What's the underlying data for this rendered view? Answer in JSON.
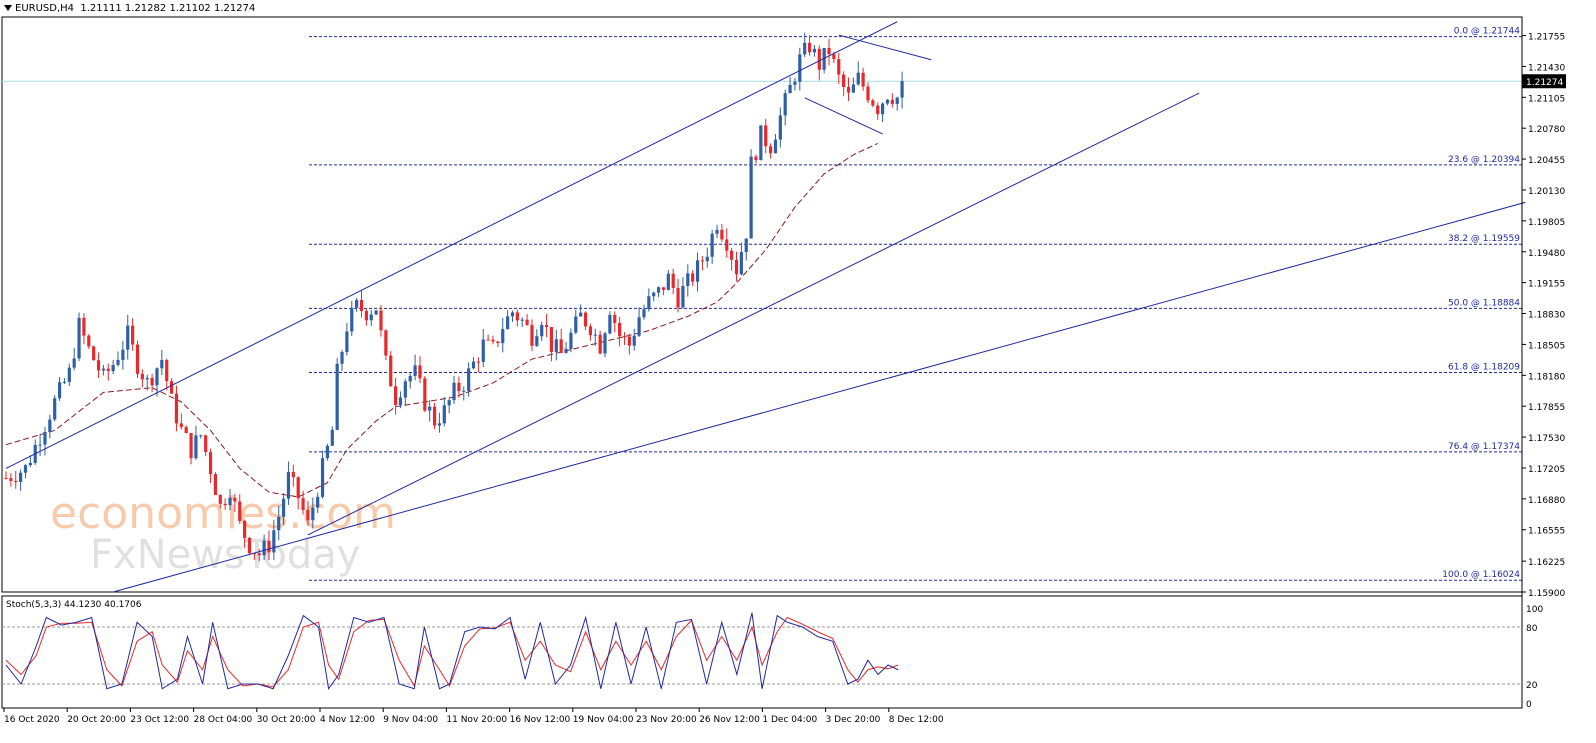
{
  "header": {
    "symbol": "EURUSD,H4",
    "ohlc": "1.21111 1.21282 1.21102 1.21274"
  },
  "colors": {
    "bull": "#2e5fa8",
    "bear": "#e8292b",
    "ma": "#8b1a1a",
    "trend": "#1f2a9e",
    "fib": "#1f2a9e",
    "stoch_main": "#1f2a9e",
    "stoch_signal": "#e8292b",
    "current_price_line": "#a9dbe6",
    "watermark_orange": "#f3a876",
    "watermark_grey": "#c8c8c8"
  },
  "watermark": {
    "line1": "economies.com",
    "line2": "FxNewsToday"
  },
  "chart_data": {
    "type": "candlestick",
    "symbol": "EURUSD",
    "timeframe": "H4",
    "current_price": "1.21274",
    "ylim": [
      1.159,
      1.2195
    ],
    "y_ticks": [
      "1.21755",
      "1.21430",
      "1.21105",
      "1.20780",
      "1.20455",
      "1.20130",
      "1.19805",
      "1.19480",
      "1.19155",
      "1.18830",
      "1.18505",
      "1.18180",
      "1.17855",
      "1.17530",
      "1.17205",
      "1.16880",
      "1.16555",
      "1.16225",
      "1.15900"
    ],
    "x_ticks": [
      "16 Oct 2020",
      "20 Oct 20:00",
      "23 Oct 12:00",
      "28 Oct 04:00",
      "30 Oct 20:00",
      "4 Nov 12:00",
      "9 Nov 04:00",
      "11 Nov 20:00",
      "16 Nov 12:00",
      "19 Nov 04:00",
      "23 Nov 20:00",
      "26 Nov 12:00",
      "1 Dec 04:00",
      "3 Dec 20:00",
      "8 Dec 12:00"
    ],
    "fib_levels": [
      {
        "label": "0.0 @ 1.21744",
        "price": 1.21744
      },
      {
        "label": "23.6 @ 1.20394",
        "price": 1.20394
      },
      {
        "label": "38.2 @ 1.19559",
        "price": 1.19559
      },
      {
        "label": "50.0 @ 1.18884",
        "price": 1.18884
      },
      {
        "label": "61.8 @ 1.18209",
        "price": 1.18209
      },
      {
        "label": "76.4 @ 1.17374",
        "price": 1.17374
      },
      {
        "label": "100.0 @ 1.16024",
        "price": 1.16024
      }
    ],
    "close_path": [
      [
        0,
        1.171
      ],
      [
        4,
        1.172
      ],
      [
        7,
        1.1755
      ],
      [
        10,
        1.179
      ],
      [
        13,
        1.182
      ],
      [
        15,
        1.187
      ],
      [
        17,
        1.1845
      ],
      [
        20,
        1.1815
      ],
      [
        22,
        1.183
      ],
      [
        25,
        1.186
      ],
      [
        27,
        1.183
      ],
      [
        29,
        1.181
      ],
      [
        32,
        1.1835
      ],
      [
        34,
        1.179
      ],
      [
        36,
        1.176
      ],
      [
        38,
        1.174
      ],
      [
        40,
        1.1755
      ],
      [
        42,
        1.172
      ],
      [
        44,
        1.168
      ],
      [
        46,
        1.17
      ],
      [
        48,
        1.166
      ],
      [
        50,
        1.164
      ],
      [
        52,
        1.163
      ],
      [
        54,
        1.164
      ],
      [
        56,
        1.167
      ],
      [
        58,
        1.171
      ],
      [
        60,
        1.169
      ],
      [
        62,
        1.166
      ],
      [
        63,
        1.168
      ],
      [
        65,
        1.172
      ],
      [
        67,
        1.176
      ],
      [
        68,
        1.182
      ],
      [
        70,
        1.187
      ],
      [
        72,
        1.189
      ],
      [
        74,
        1.1885
      ],
      [
        76,
        1.189
      ],
      [
        78,
        1.183
      ],
      [
        80,
        1.1795
      ],
      [
        82,
        1.1815
      ],
      [
        84,
        1.182
      ],
      [
        86,
        1.179
      ],
      [
        88,
        1.177
      ],
      [
        90,
        1.178
      ],
      [
        92,
        1.18
      ],
      [
        94,
        1.181
      ],
      [
        96,
        1.183
      ],
      [
        98,
        1.185
      ],
      [
        100,
        1.1845
      ],
      [
        102,
        1.187
      ],
      [
        104,
        1.1885
      ],
      [
        106,
        1.1875
      ],
      [
        108,
        1.186
      ],
      [
        110,
        1.188
      ],
      [
        112,
        1.185
      ],
      [
        114,
        1.184
      ],
      [
        116,
        1.186
      ],
      [
        118,
        1.188
      ],
      [
        120,
        1.187
      ],
      [
        122,
        1.185
      ],
      [
        124,
        1.189
      ],
      [
        126,
        1.186
      ],
      [
        128,
        1.185
      ],
      [
        130,
        1.188
      ],
      [
        132,
        1.1895
      ],
      [
        134,
        1.1905
      ],
      [
        136,
        1.192
      ],
      [
        138,
        1.19
      ],
      [
        140,
        1.1915
      ],
      [
        142,
        1.193
      ],
      [
        144,
        1.195
      ],
      [
        146,
        1.198
      ],
      [
        148,
        1.196
      ],
      [
        150,
        1.193
      ],
      [
        152,
        1.197
      ],
      [
        153,
        1.204
      ],
      [
        155,
        1.207
      ],
      [
        157,
        1.206
      ],
      [
        159,
        1.209
      ],
      [
        161,
        1.212
      ],
      [
        163,
        1.215
      ],
      [
        165,
        1.2165
      ],
      [
        167,
        1.2145
      ],
      [
        169,
        1.216
      ],
      [
        171,
        1.213
      ],
      [
        173,
        1.211
      ],
      [
        175,
        1.213
      ],
      [
        177,
        1.2115
      ],
      [
        179,
        1.21
      ],
      [
        181,
        1.2115
      ],
      [
        183,
        1.211
      ],
      [
        184,
        1.21274
      ]
    ],
    "moving_average": [
      [
        0,
        1.1745
      ],
      [
        10,
        1.176
      ],
      [
        20,
        1.18
      ],
      [
        30,
        1.1805
      ],
      [
        36,
        1.179
      ],
      [
        42,
        1.176
      ],
      [
        48,
        1.172
      ],
      [
        54,
        1.1695
      ],
      [
        60,
        1.169
      ],
      [
        66,
        1.1705
      ],
      [
        70,
        1.174
      ],
      [
        76,
        1.177
      ],
      [
        80,
        1.1785
      ],
      [
        86,
        1.179
      ],
      [
        92,
        1.1795
      ],
      [
        100,
        1.181
      ],
      [
        108,
        1.1835
      ],
      [
        116,
        1.1845
      ],
      [
        124,
        1.1855
      ],
      [
        132,
        1.1865
      ],
      [
        140,
        1.188
      ],
      [
        146,
        1.1895
      ],
      [
        150,
        1.1915
      ],
      [
        156,
        1.195
      ],
      [
        162,
        1.1995
      ],
      [
        168,
        1.203
      ],
      [
        174,
        1.205
      ],
      [
        179,
        1.2062
      ]
    ],
    "stochastic": {
      "label": "Stoch(5,3,3) 44.1230 40.1706",
      "k": 44.123,
      "d": 40.1706,
      "levels": [
        80,
        20
      ],
      "axis_labels": [
        "100",
        "80",
        "20",
        "0"
      ],
      "k_path": [
        [
          0,
          40
        ],
        [
          3,
          20
        ],
        [
          6,
          60
        ],
        [
          8,
          90
        ],
        [
          11,
          82
        ],
        [
          14,
          85
        ],
        [
          17,
          90
        ],
        [
          20,
          15
        ],
        [
          23,
          20
        ],
        [
          26,
          85
        ],
        [
          29,
          70
        ],
        [
          31,
          15
        ],
        [
          34,
          25
        ],
        [
          36,
          70
        ],
        [
          39,
          20
        ],
        [
          41,
          85
        ],
        [
          44,
          15
        ],
        [
          47,
          20
        ],
        [
          50,
          20
        ],
        [
          53,
          15
        ],
        [
          56,
          50
        ],
        [
          59,
          92
        ],
        [
          62,
          80
        ],
        [
          64,
          15
        ],
        [
          66,
          30
        ],
        [
          69,
          90
        ],
        [
          72,
          85
        ],
        [
          75,
          90
        ],
        [
          78,
          20
        ],
        [
          81,
          15
        ],
        [
          83,
          80
        ],
        [
          86,
          15
        ],
        [
          88,
          20
        ],
        [
          91,
          75
        ],
        [
          94,
          80
        ],
        [
          97,
          78
        ],
        [
          100,
          90
        ],
        [
          103,
          25
        ],
        [
          106,
          85
        ],
        [
          109,
          20
        ],
        [
          112,
          40
        ],
        [
          115,
          90
        ],
        [
          118,
          15
        ],
        [
          121,
          85
        ],
        [
          124,
          20
        ],
        [
          127,
          80
        ],
        [
          130,
          15
        ],
        [
          133,
          85
        ],
        [
          136,
          88
        ],
        [
          139,
          20
        ],
        [
          142,
          85
        ],
        [
          145,
          30
        ],
        [
          148,
          95
        ],
        [
          150,
          15
        ],
        [
          153,
          92
        ],
        [
          155,
          85
        ],
        [
          158,
          80
        ],
        [
          161,
          70
        ],
        [
          164,
          65
        ],
        [
          167,
          20
        ],
        [
          169,
          25
        ],
        [
          171,
          45
        ],
        [
          173,
          30
        ],
        [
          175,
          40
        ],
        [
          177,
          35
        ]
      ],
      "d_path": [
        [
          0,
          45
        ],
        [
          3,
          30
        ],
        [
          6,
          50
        ],
        [
          8,
          80
        ],
        [
          11,
          84
        ],
        [
          14,
          84
        ],
        [
          17,
          85
        ],
        [
          20,
          35
        ],
        [
          23,
          18
        ],
        [
          26,
          65
        ],
        [
          29,
          75
        ],
        [
          31,
          40
        ],
        [
          34,
          22
        ],
        [
          36,
          55
        ],
        [
          39,
          35
        ],
        [
          41,
          70
        ],
        [
          44,
          35
        ],
        [
          47,
          18
        ],
        [
          50,
          20
        ],
        [
          53,
          17
        ],
        [
          56,
          35
        ],
        [
          59,
          80
        ],
        [
          62,
          85
        ],
        [
          64,
          40
        ],
        [
          66,
          25
        ],
        [
          69,
          75
        ],
        [
          72,
          87
        ],
        [
          75,
          88
        ],
        [
          78,
          45
        ],
        [
          81,
          18
        ],
        [
          83,
          60
        ],
        [
          86,
          35
        ],
        [
          88,
          18
        ],
        [
          91,
          60
        ],
        [
          94,
          78
        ],
        [
          97,
          79
        ],
        [
          100,
          85
        ],
        [
          103,
          45
        ],
        [
          106,
          65
        ],
        [
          109,
          40
        ],
        [
          112,
          33
        ],
        [
          115,
          75
        ],
        [
          118,
          35
        ],
        [
          121,
          65
        ],
        [
          124,
          40
        ],
        [
          127,
          65
        ],
        [
          130,
          35
        ],
        [
          133,
          70
        ],
        [
          136,
          87
        ],
        [
          139,
          45
        ],
        [
          142,
          70
        ],
        [
          145,
          45
        ],
        [
          148,
          80
        ],
        [
          150,
          40
        ],
        [
          153,
          75
        ],
        [
          155,
          90
        ],
        [
          158,
          83
        ],
        [
          161,
          75
        ],
        [
          164,
          68
        ],
        [
          167,
          35
        ],
        [
          169,
          22
        ],
        [
          171,
          35
        ],
        [
          173,
          38
        ],
        [
          175,
          36
        ],
        [
          177,
          40
        ]
      ]
    }
  }
}
